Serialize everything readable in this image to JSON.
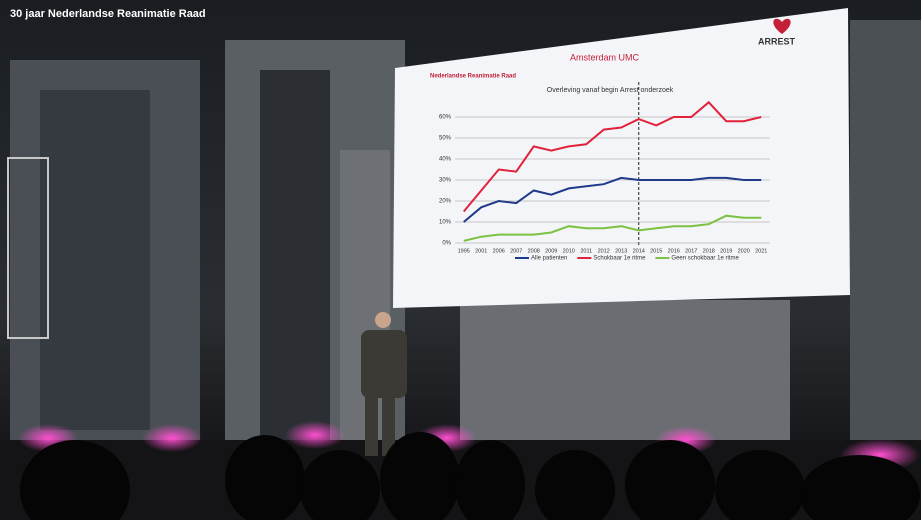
{
  "overlay_title": "30 jaar Nederlandse Reanimatie Raad",
  "slide": {
    "logos": [
      "Nederlandse Reanimatie Raad",
      "Amsterdam UMC",
      "ARREST"
    ]
  },
  "chart_data": {
    "type": "line",
    "title": "Overleving vanaf begin Arrest onderzoek",
    "categories": [
      "1995",
      "2001",
      "2006",
      "2007",
      "2008",
      "2009",
      "2010",
      "2011",
      "2012",
      "2013",
      "2014",
      "2015",
      "2016",
      "2017",
      "2018",
      "2019",
      "2020",
      "2021"
    ],
    "series": [
      {
        "name": "Alle patienten",
        "color": "#1f3a8a",
        "values": [
          10,
          17,
          20,
          19,
          25,
          23,
          26,
          27,
          28,
          31,
          30,
          30,
          30,
          30,
          31,
          31,
          30,
          30
        ]
      },
      {
        "name": "Schokbaar 1e ritme",
        "color": "#e0223a",
        "values": [
          15,
          25,
          35,
          34,
          46,
          44,
          46,
          47,
          54,
          55,
          59,
          56,
          60,
          60,
          67,
          58,
          58,
          60
        ]
      },
      {
        "name": "Geen schokbaar 1e ritme",
        "color": "#7cc242",
        "values": [
          1,
          3,
          4,
          4,
          4,
          5,
          8,
          7,
          7,
          8,
          6,
          7,
          8,
          8,
          9,
          13,
          12,
          12
        ]
      }
    ],
    "ylim": [
      0,
      70
    ],
    "yticks": [
      {
        "value": 0,
        "label": "0%"
      },
      {
        "value": 10,
        "label": "10%"
      },
      {
        "value": 20,
        "label": "20%"
      },
      {
        "value": 30,
        "label": "30%"
      },
      {
        "value": 40,
        "label": "40%"
      },
      {
        "value": 50,
        "label": "50%"
      },
      {
        "value": 60,
        "label": "60%"
      }
    ],
    "grid": true
  }
}
